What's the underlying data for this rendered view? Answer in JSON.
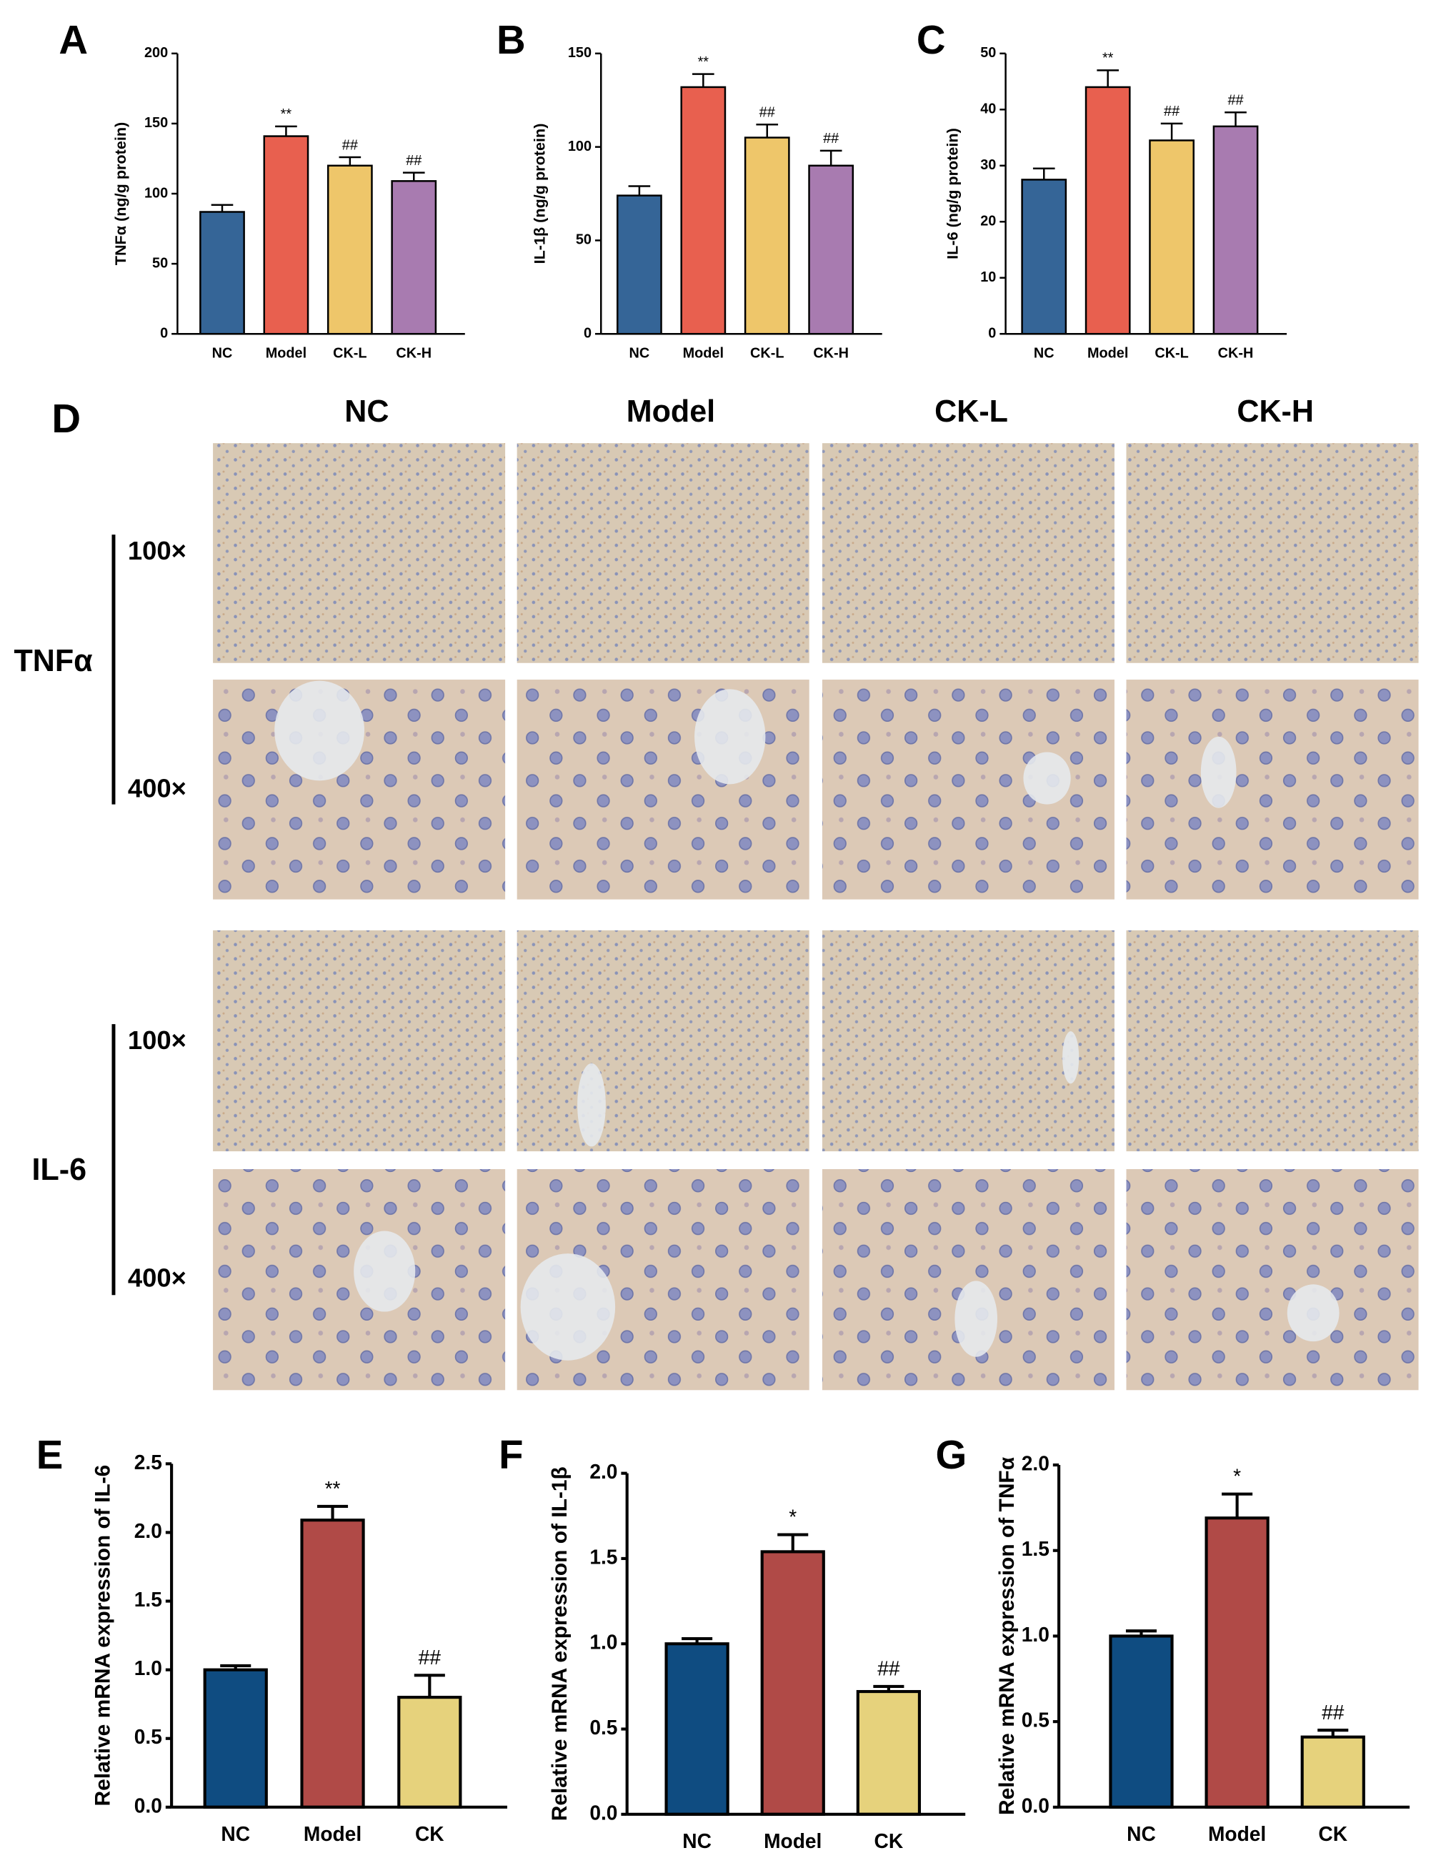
{
  "chart_data": [
    {
      "type": "bar",
      "panel": "A",
      "ylabel": "TNFα (ng/g protein)",
      "categories": [
        "NC",
        "Model",
        "CK-L",
        "CK-H"
      ],
      "values": [
        87,
        141,
        120,
        109
      ],
      "errors": [
        5,
        7,
        6,
        6
      ],
      "annotations": [
        null,
        "**",
        "##",
        "##"
      ],
      "colors": [
        "#356597",
        "#e8604f",
        "#eec66a",
        "#a87bb0"
      ],
      "ylim": [
        0,
        200
      ],
      "yticks": [
        0,
        50,
        100,
        150,
        200
      ]
    },
    {
      "type": "bar",
      "panel": "B",
      "ylabel": "IL-1β (ng/g protein)",
      "categories": [
        "NC",
        "Model",
        "CK-L",
        "CK-H"
      ],
      "values": [
        74,
        132,
        105,
        90
      ],
      "errors": [
        5,
        7,
        7,
        8
      ],
      "annotations": [
        null,
        "**",
        "##",
        "##"
      ],
      "colors": [
        "#356597",
        "#e8604f",
        "#eec66a",
        "#a87bb0"
      ],
      "ylim": [
        0,
        150
      ],
      "yticks": [
        0,
        50,
        100,
        150
      ]
    },
    {
      "type": "bar",
      "panel": "C",
      "ylabel": "IL-6 (ng/g protein)",
      "categories": [
        "NC",
        "Model",
        "CK-L",
        "CK-H"
      ],
      "values": [
        27.5,
        44,
        34.5,
        37
      ],
      "errors": [
        2,
        3,
        3,
        2.5
      ],
      "annotations": [
        null,
        "**",
        "##",
        "##"
      ],
      "colors": [
        "#356597",
        "#e8604f",
        "#eec66a",
        "#a87bb0"
      ],
      "ylim": [
        0,
        50
      ],
      "yticks": [
        0,
        10,
        20,
        30,
        40,
        50
      ]
    },
    {
      "type": "bar",
      "panel": "E",
      "ylabel": "Relative mRNA expression of IL-6",
      "categories": [
        "NC",
        "Model",
        "CK"
      ],
      "values": [
        1.0,
        2.09,
        0.8
      ],
      "errors": [
        0.03,
        0.1,
        0.16
      ],
      "annotations": [
        null,
        "**",
        "##"
      ],
      "colors": [
        "#0f4c81",
        "#b04a47",
        "#e6d27c"
      ],
      "ylim": [
        0,
        2.5
      ],
      "yticks": [
        {
          "value": 0,
          "label": "0.0"
        },
        0.5,
        {
          "value": 1,
          "label": "1.0"
        },
        1.5,
        {
          "value": 2,
          "label": "2.0"
        },
        2.5
      ]
    },
    {
      "type": "bar",
      "panel": "F",
      "ylabel": "Relative mRNA expression of IL-1β",
      "categories": [
        "NC",
        "Model",
        "CK"
      ],
      "values": [
        1.0,
        1.54,
        0.72
      ],
      "errors": [
        0.03,
        0.1,
        0.03
      ],
      "annotations": [
        null,
        "*",
        "##"
      ],
      "colors": [
        "#0f4c81",
        "#b04a47",
        "#e6d27c"
      ],
      "ylim": [
        0,
        2
      ],
      "yticks": [
        {
          "value": 0,
          "label": "0.0"
        },
        0.5,
        {
          "value": 1,
          "label": "1.0"
        },
        1.5,
        {
          "value": 2,
          "label": "2.0"
        }
      ]
    },
    {
      "type": "bar",
      "panel": "G",
      "ylabel": "Relative mRNA expression of TNFα",
      "categories": [
        "NC",
        "Model",
        "CK"
      ],
      "values": [
        1.0,
        1.69,
        0.41
      ],
      "errors": [
        0.03,
        0.14,
        0.04
      ],
      "annotations": [
        null,
        "*",
        "##"
      ],
      "colors": [
        "#0f4c81",
        "#b04a47",
        "#e6d27c"
      ],
      "ylim": [
        0,
        2
      ],
      "yticks": [
        {
          "value": 0,
          "label": "0.0"
        },
        0.5,
        {
          "value": 1,
          "label": "1.0"
        },
        1.5,
        {
          "value": 2,
          "label": "2.0"
        }
      ]
    }
  ],
  "micrographs": {
    "panel": "D",
    "columns": [
      "NC",
      "Model",
      "CK-L",
      "CK-H"
    ],
    "stains": [
      {
        "name": "TNFα",
        "magnifications": [
          "100×",
          "400×"
        ]
      },
      {
        "name": "IL-6",
        "magnifications": [
          "100×",
          "400×"
        ]
      }
    ]
  }
}
